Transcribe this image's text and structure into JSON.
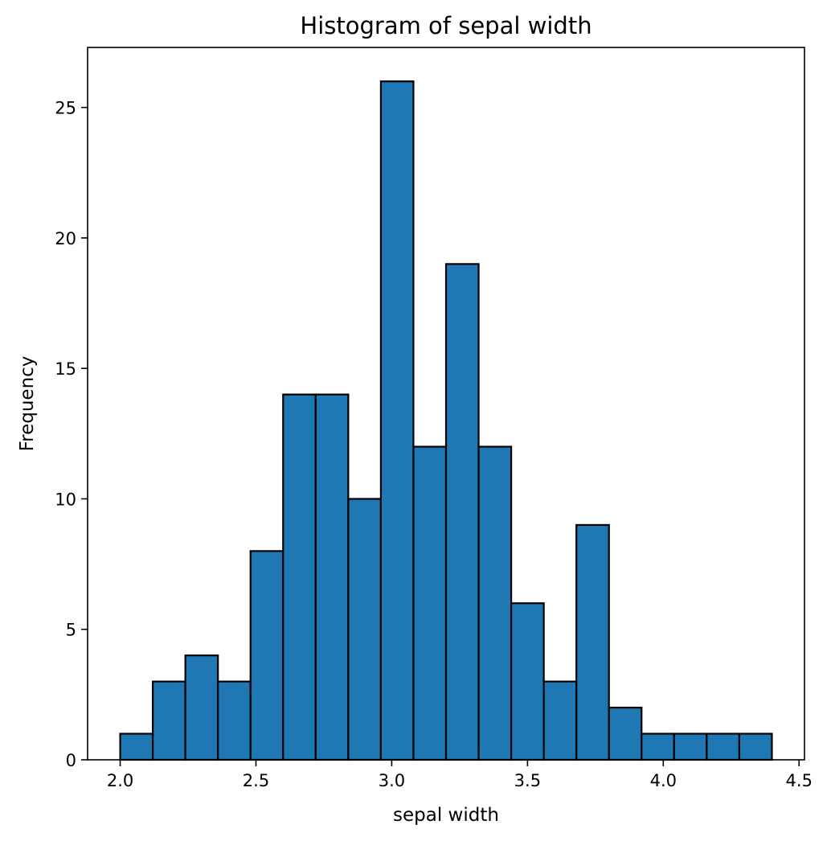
{
  "chart_data": {
    "type": "bar",
    "title": "Histogram of sepal width",
    "xlabel": "sepal width",
    "ylabel": "Frequency",
    "bin_edges": [
      2.0,
      2.12,
      2.24,
      2.36,
      2.48,
      2.6,
      2.72,
      2.84,
      2.96,
      3.08,
      3.2,
      3.32,
      3.44,
      3.56,
      3.68,
      3.8,
      3.92,
      4.04,
      4.16,
      4.28,
      4.4
    ],
    "values": [
      1,
      3,
      4,
      3,
      8,
      14,
      14,
      10,
      26,
      12,
      19,
      12,
      6,
      3,
      9,
      2,
      1,
      1,
      1,
      1
    ],
    "xlim": [
      1.88,
      4.52
    ],
    "ylim": [
      0,
      27.3
    ],
    "x_ticks": [
      "2.0",
      "2.5",
      "3.0",
      "3.5",
      "4.0",
      "4.5"
    ],
    "y_ticks": [
      "0",
      "5",
      "10",
      "15",
      "20",
      "25"
    ],
    "grid": false,
    "colors": {
      "bar_fill": "#1f77b4",
      "bar_edge": "#000000",
      "axes": "#000000",
      "background": "#ffffff"
    }
  }
}
